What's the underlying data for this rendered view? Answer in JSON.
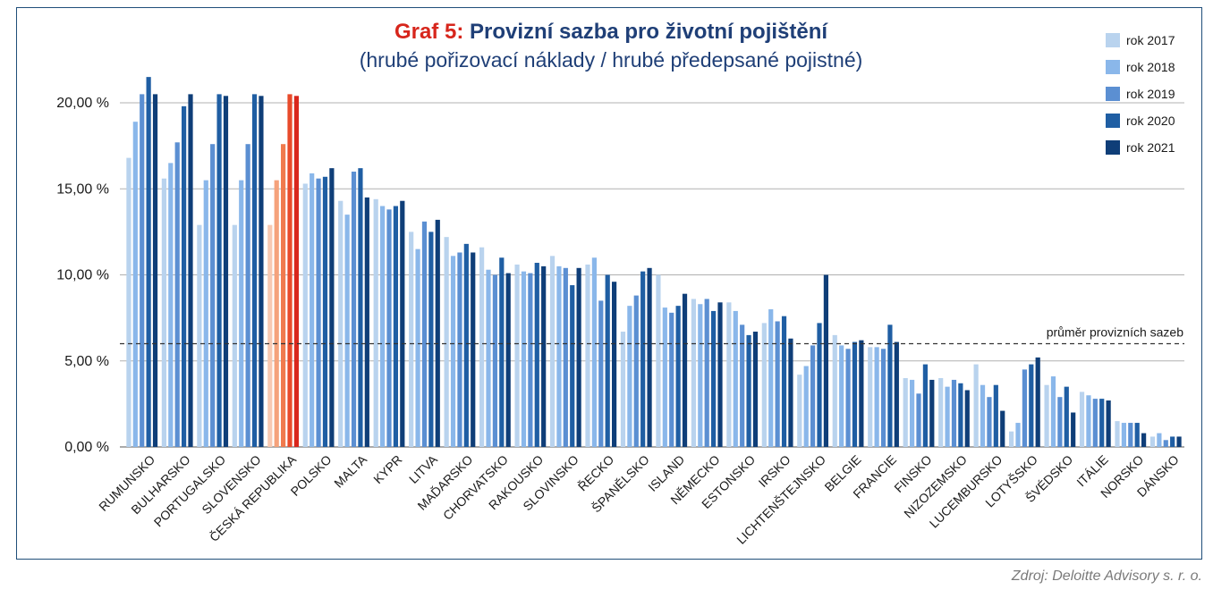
{
  "title": {
    "prefix": "Graf 5:",
    "text": "Provizní sazba pro životní pojištění"
  },
  "subtitle": "(hrubé pořizovací náklady / hrubé předepsané pojistné)",
  "source": "Zdroj: Deloitte Advisory s. r. o.",
  "colors": {
    "series": [
      "#b9d3ee",
      "#8ab7ea",
      "#5b8fd2",
      "#1f5ea3",
      "#0f3e78"
    ],
    "highlight": [
      "#f8c9b2",
      "#f5a27b",
      "#f07a4e",
      "#e84a2a",
      "#d9261c"
    ],
    "grid": "#b0b0b0",
    "average_line": "#333333"
  },
  "chart_data": {
    "type": "bar",
    "categories": [
      "RUMUNSKO",
      "BULHARSKO",
      "PORTUGALSKO",
      "SLOVENSKO",
      "ČESKÁ REPUBLIKA",
      "POLSKO",
      "MALTA",
      "KYPR",
      "LITVA",
      "MAĎARSKO",
      "CHORVATSKO",
      "RAKOUSKO",
      "SLOVINSKO",
      "ŘECKO",
      "ŠPANĚLSKO",
      "ISLAND",
      "NĚMECKO",
      "ESTONSKO",
      "IRSKO",
      "LICHTENŠTEJNSKO",
      "BELGIE",
      "FRANCIE",
      "FINSKO",
      "NIZOZEMSKO",
      "LUCEMBURSKO",
      "LOTYŠSKO",
      "ŠVÉDSKO",
      "ITÁLIE",
      "NORSKO",
      "DÁNSKO"
    ],
    "highlight_category": "ČESKÁ REPUBLIKA",
    "series": [
      {
        "name": "rok 2017",
        "values": [
          16.8,
          15.6,
          12.9,
          12.9,
          12.9,
          15.3,
          14.3,
          14.4,
          12.5,
          12.2,
          11.6,
          10.6,
          11.1,
          10.6,
          6.7,
          10.0,
          8.6,
          8.4,
          7.2,
          4.2,
          6.5,
          5.8,
          4.0,
          4.0,
          4.8,
          0.9,
          3.6,
          3.2,
          1.5,
          0.6
        ]
      },
      {
        "name": "rok 2018",
        "values": [
          18.9,
          16.5,
          15.5,
          15.5,
          15.5,
          15.9,
          13.5,
          14.0,
          11.5,
          11.1,
          10.3,
          10.2,
          10.5,
          11.0,
          8.2,
          8.1,
          8.3,
          7.9,
          8.0,
          4.7,
          5.9,
          5.8,
          3.9,
          3.5,
          3.6,
          1.4,
          4.1,
          3.0,
          1.4,
          0.8
        ]
      },
      {
        "name": "rok 2019",
        "values": [
          20.5,
          17.7,
          17.6,
          17.6,
          17.6,
          15.6,
          16.0,
          13.8,
          13.1,
          11.3,
          10.0,
          10.1,
          10.4,
          8.5,
          8.8,
          7.8,
          8.6,
          7.1,
          7.3,
          5.9,
          5.7,
          5.7,
          3.1,
          3.9,
          2.9,
          4.5,
          2.9,
          2.8,
          1.4,
          0.4
        ]
      },
      {
        "name": "rok 2020",
        "values": [
          21.5,
          19.8,
          20.5,
          20.5,
          20.5,
          15.7,
          16.2,
          14.0,
          12.5,
          11.8,
          11.0,
          10.7,
          9.4,
          10.0,
          10.2,
          8.2,
          7.9,
          6.5,
          7.6,
          7.2,
          6.1,
          7.1,
          4.8,
          3.7,
          3.6,
          4.8,
          3.5,
          2.8,
          1.4,
          0.6
        ]
      },
      {
        "name": "rok 2021",
        "values": [
          20.5,
          20.5,
          20.4,
          20.4,
          20.4,
          16.2,
          14.5,
          14.3,
          13.2,
          11.3,
          10.1,
          10.5,
          10.4,
          9.6,
          10.4,
          8.9,
          8.4,
          6.7,
          6.3,
          10.0,
          6.2,
          6.1,
          3.9,
          3.3,
          2.1,
          5.2,
          2.0,
          2.7,
          0.8,
          0.6
        ]
      }
    ],
    "yticks": [
      "0,00 %",
      "5,00 %",
      "10,00 %",
      "15,00 %",
      "20,00 %"
    ],
    "ylim": [
      0,
      22.5
    ],
    "average": {
      "value": 6.0,
      "label": "průměr provizních sazeb"
    },
    "legend": "right",
    "grid": true
  }
}
